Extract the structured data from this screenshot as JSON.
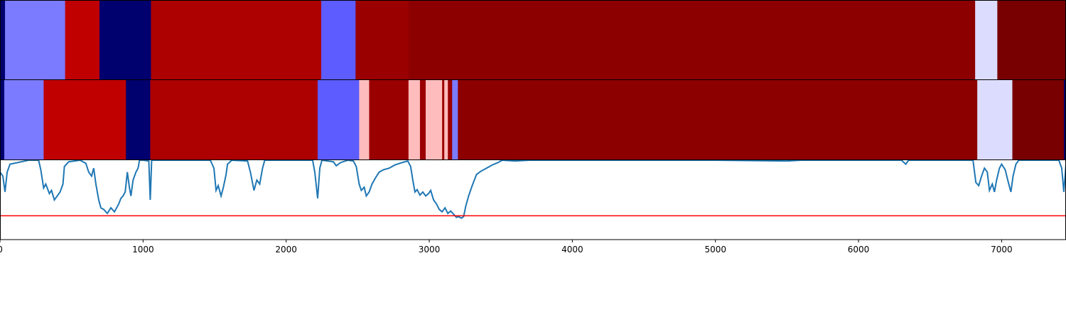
{
  "chart_data": {
    "type": "heatmap",
    "x_range": [
      0,
      7450
    ],
    "xticks": [
      0,
      1000,
      2000,
      3000,
      4000,
      5000,
      6000,
      7000
    ],
    "xtick_labels": [
      "0",
      "1000",
      "2000",
      "3000",
      "4000",
      "5000",
      "6000",
      "7000"
    ],
    "rows": [
      {
        "segments": [
          {
            "start": 0,
            "end": 35,
            "color": "#00006e"
          },
          {
            "start": 35,
            "end": 455,
            "color": "#7b7bff"
          },
          {
            "start": 455,
            "end": 695,
            "color": "#c00000"
          },
          {
            "start": 695,
            "end": 1055,
            "color": "#00006e"
          },
          {
            "start": 1055,
            "end": 2245,
            "color": "#ad0000"
          },
          {
            "start": 2245,
            "end": 2485,
            "color": "#5c5cff"
          },
          {
            "start": 2485,
            "end": 2855,
            "color": "#9b0000"
          },
          {
            "start": 2855,
            "end": 6815,
            "color": "#8d0000"
          },
          {
            "start": 6815,
            "end": 6970,
            "color": "#dcdcff"
          },
          {
            "start": 6970,
            "end": 7450,
            "color": "#780000"
          }
        ]
      },
      {
        "segments": [
          {
            "start": 0,
            "end": 30,
            "color": "#00006e"
          },
          {
            "start": 30,
            "end": 305,
            "color": "#7b7bff"
          },
          {
            "start": 305,
            "end": 880,
            "color": "#c00000"
          },
          {
            "start": 880,
            "end": 1050,
            "color": "#00006e"
          },
          {
            "start": 1050,
            "end": 2220,
            "color": "#ad0000"
          },
          {
            "start": 2220,
            "end": 2510,
            "color": "#5c5cff"
          },
          {
            "start": 2510,
            "end": 2580,
            "color": "#ffbcbc"
          },
          {
            "start": 2580,
            "end": 2855,
            "color": "#9b0000"
          },
          {
            "start": 2855,
            "end": 2935,
            "color": "#ffbcbc"
          },
          {
            "start": 2935,
            "end": 2975,
            "color": "#9b0000"
          },
          {
            "start": 2975,
            "end": 3090,
            "color": "#ffbcbc"
          },
          {
            "start": 3090,
            "end": 3105,
            "color": "#9b0000"
          },
          {
            "start": 3105,
            "end": 3130,
            "color": "#ffbcbc"
          },
          {
            "start": 3130,
            "end": 3160,
            "color": "#9b0000"
          },
          {
            "start": 3160,
            "end": 3200,
            "color": "#7b7bff"
          },
          {
            "start": 3200,
            "end": 6830,
            "color": "#8d0000"
          },
          {
            "start": 6830,
            "end": 7075,
            "color": "#dcdcff"
          },
          {
            "start": 7075,
            "end": 7435,
            "color": "#780000"
          },
          {
            "start": 7435,
            "end": 7450,
            "color": "#00006e"
          }
        ]
      }
    ],
    "line_panel": {
      "y_range": [
        0,
        1
      ],
      "threshold": 0.3,
      "threshold_color": "#ff0000",
      "line_color": "#1f77b4",
      "points": [
        [
          0,
          0.85
        ],
        [
          20,
          0.8
        ],
        [
          35,
          0.6
        ],
        [
          50,
          0.85
        ],
        [
          70,
          0.95
        ],
        [
          200,
          1.0
        ],
        [
          270,
          1.0
        ],
        [
          285,
          0.88
        ],
        [
          305,
          0.65
        ],
        [
          320,
          0.7
        ],
        [
          345,
          0.58
        ],
        [
          360,
          0.62
        ],
        [
          380,
          0.5
        ],
        [
          400,
          0.55
        ],
        [
          420,
          0.6
        ],
        [
          440,
          0.7
        ],
        [
          450,
          0.92
        ],
        [
          480,
          0.98
        ],
        [
          560,
          1.0
        ],
        [
          600,
          0.96
        ],
        [
          620,
          0.85
        ],
        [
          640,
          0.8
        ],
        [
          655,
          0.9
        ],
        [
          670,
          0.7
        ],
        [
          690,
          0.5
        ],
        [
          705,
          0.4
        ],
        [
          725,
          0.38
        ],
        [
          750,
          0.33
        ],
        [
          775,
          0.4
        ],
        [
          800,
          0.35
        ],
        [
          830,
          0.45
        ],
        [
          845,
          0.52
        ],
        [
          860,
          0.55
        ],
        [
          875,
          0.6
        ],
        [
          890,
          0.85
        ],
        [
          905,
          0.65
        ],
        [
          915,
          0.55
        ],
        [
          930,
          0.75
        ],
        [
          950,
          0.85
        ],
        [
          965,
          0.9
        ],
        [
          975,
          1.0
        ],
        [
          1000,
          1.0
        ],
        [
          1040,
          0.99
        ],
        [
          1050,
          0.5
        ],
        [
          1060,
          1.0
        ],
        [
          1470,
          1.0
        ],
        [
          1495,
          0.9
        ],
        [
          1510,
          0.62
        ],
        [
          1525,
          0.68
        ],
        [
          1545,
          0.55
        ],
        [
          1560,
          0.65
        ],
        [
          1580,
          0.82
        ],
        [
          1590,
          0.95
        ],
        [
          1620,
          1.0
        ],
        [
          1730,
          0.99
        ],
        [
          1750,
          0.85
        ],
        [
          1775,
          0.62
        ],
        [
          1795,
          0.75
        ],
        [
          1815,
          0.7
        ],
        [
          1835,
          0.9
        ],
        [
          1850,
          1.0
        ],
        [
          2185,
          1.0
        ],
        [
          2200,
          0.85
        ],
        [
          2220,
          0.52
        ],
        [
          2235,
          0.9
        ],
        [
          2250,
          1.0
        ],
        [
          2330,
          0.98
        ],
        [
          2350,
          0.93
        ],
        [
          2380,
          0.97
        ],
        [
          2430,
          1.0
        ],
        [
          2470,
          0.99
        ],
        [
          2490,
          0.92
        ],
        [
          2510,
          0.7
        ],
        [
          2525,
          0.62
        ],
        [
          2545,
          0.66
        ],
        [
          2560,
          0.55
        ],
        [
          2580,
          0.6
        ],
        [
          2600,
          0.7
        ],
        [
          2625,
          0.78
        ],
        [
          2650,
          0.85
        ],
        [
          2680,
          0.88
        ],
        [
          2720,
          0.9
        ],
        [
          2760,
          0.94
        ],
        [
          2810,
          0.97
        ],
        [
          2850,
          0.99
        ],
        [
          2870,
          0.92
        ],
        [
          2885,
          0.75
        ],
        [
          2900,
          0.6
        ],
        [
          2915,
          0.63
        ],
        [
          2935,
          0.56
        ],
        [
          2955,
          0.6
        ],
        [
          2975,
          0.55
        ],
        [
          2995,
          0.58
        ],
        [
          3010,
          0.62
        ],
        [
          3030,
          0.5
        ],
        [
          3050,
          0.45
        ],
        [
          3070,
          0.38
        ],
        [
          3090,
          0.35
        ],
        [
          3110,
          0.4
        ],
        [
          3130,
          0.33
        ],
        [
          3150,
          0.36
        ],
        [
          3170,
          0.32
        ],
        [
          3190,
          0.28
        ],
        [
          3205,
          0.29
        ],
        [
          3225,
          0.27
        ],
        [
          3240,
          0.29
        ],
        [
          3255,
          0.42
        ],
        [
          3275,
          0.55
        ],
        [
          3300,
          0.68
        ],
        [
          3330,
          0.82
        ],
        [
          3360,
          0.86
        ],
        [
          3400,
          0.9
        ],
        [
          3440,
          0.94
        ],
        [
          3480,
          0.97
        ],
        [
          3510,
          1.0
        ],
        [
          3600,
          0.99
        ],
        [
          3700,
          1.0
        ],
        [
          4000,
          1.0
        ],
        [
          4500,
          1.0
        ],
        [
          5000,
          1.0
        ],
        [
          5500,
          0.99
        ],
        [
          5600,
          1.0
        ],
        [
          6000,
          1.0
        ],
        [
          6300,
          1.0
        ],
        [
          6330,
          0.95
        ],
        [
          6350,
          1.0
        ],
        [
          6800,
          1.0
        ],
        [
          6820,
          0.72
        ],
        [
          6840,
          0.68
        ],
        [
          6860,
          0.8
        ],
        [
          6880,
          0.9
        ],
        [
          6900,
          0.85
        ],
        [
          6915,
          0.62
        ],
        [
          6935,
          0.7
        ],
        [
          6950,
          0.6
        ],
        [
          6965,
          0.75
        ],
        [
          6985,
          0.9
        ],
        [
          7000,
          0.95
        ],
        [
          7025,
          0.88
        ],
        [
          7050,
          0.7
        ],
        [
          7065,
          0.6
        ],
        [
          7080,
          0.8
        ],
        [
          7100,
          0.95
        ],
        [
          7120,
          1.0
        ],
        [
          7400,
          1.0
        ],
        [
          7420,
          0.9
        ],
        [
          7435,
          0.6
        ],
        [
          7450,
          0.95
        ]
      ]
    }
  }
}
